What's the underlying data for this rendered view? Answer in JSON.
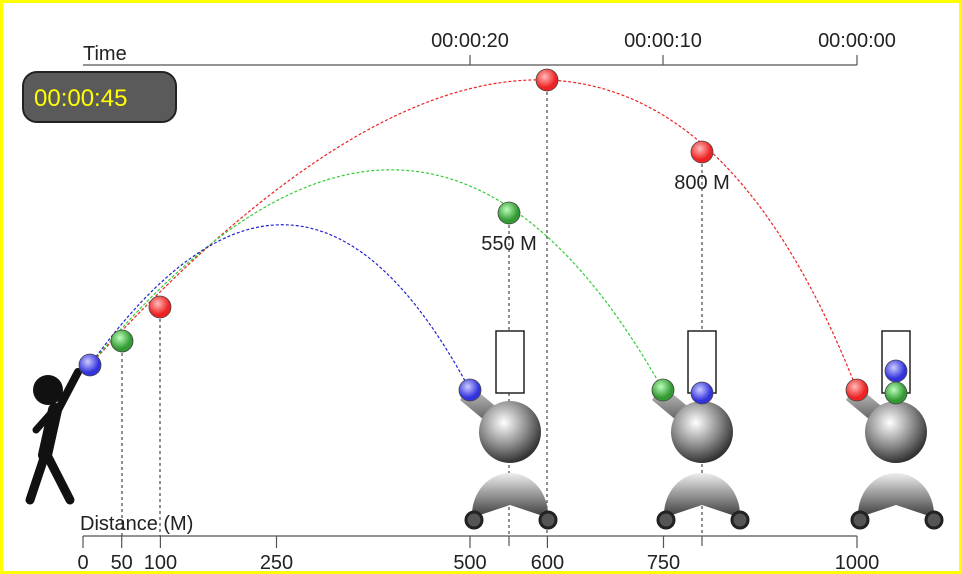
{
  "time_axis": {
    "label": "Time",
    "ticks": [
      "00:00:20",
      "00:00:10",
      "00:00:00"
    ]
  },
  "timer": "00:00:45",
  "markers": [
    "550 M",
    "800 M"
  ],
  "distance_axis": {
    "label": "Distance (M)",
    "ticks": [
      0,
      50,
      100,
      250,
      500,
      600,
      750,
      1000
    ]
  }
}
